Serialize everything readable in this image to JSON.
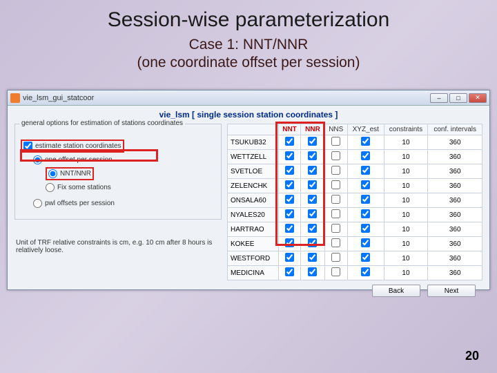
{
  "slide": {
    "title": "Session-wise parameterization",
    "subtitle_l1": "Case 1: NNT/NNR",
    "subtitle_l2": "(one coordinate offset per session)",
    "page": "20"
  },
  "window": {
    "title_text": "vie_lsm_gui_statcoor",
    "inner_title": "vie_lsm [ single session station coordinates ]",
    "group_legend": "general options for estimation of stations coordinates",
    "estimate_label": "estimate station coordinates",
    "one_offset_label": "one offset per session",
    "nntnnr_label": "NNT/NNR",
    "fix_label": "Fix some stations",
    "pwl_label": "pwl offsets per session",
    "note_text": "Unit of TRF relative constraints is cm, e.g. 10 cm after 8 hours is relatively loose.",
    "back_label": "Back",
    "next_label": "Next",
    "cols": {
      "name": "",
      "nnt": "NNT",
      "nnr": "NNR",
      "nns": "NNS",
      "xyz": "XYZ_est",
      "constr": "constraints",
      "conf": "conf. intervals"
    },
    "rows": [
      {
        "name": "TSUKUB32",
        "nnt": true,
        "nnr": true,
        "nns": false,
        "xyz": true,
        "constr": "10",
        "conf": "360"
      },
      {
        "name": "WETTZELL",
        "nnt": true,
        "nnr": true,
        "nns": false,
        "xyz": true,
        "constr": "10",
        "conf": "360"
      },
      {
        "name": "SVETLOE",
        "nnt": true,
        "nnr": true,
        "nns": false,
        "xyz": true,
        "constr": "10",
        "conf": "360"
      },
      {
        "name": "ZELENCHK",
        "nnt": true,
        "nnr": true,
        "nns": false,
        "xyz": true,
        "constr": "10",
        "conf": "360"
      },
      {
        "name": "ONSALA60",
        "nnt": true,
        "nnr": true,
        "nns": false,
        "xyz": true,
        "constr": "10",
        "conf": "360"
      },
      {
        "name": "NYALES20",
        "nnt": true,
        "nnr": true,
        "nns": false,
        "xyz": true,
        "constr": "10",
        "conf": "360"
      },
      {
        "name": "HARTRAO",
        "nnt": true,
        "nnr": true,
        "nns": false,
        "xyz": true,
        "constr": "10",
        "conf": "360"
      },
      {
        "name": "KOKEE",
        "nnt": true,
        "nnr": true,
        "nns": false,
        "xyz": true,
        "constr": "10",
        "conf": "360"
      },
      {
        "name": "WESTFORD",
        "nnt": true,
        "nnr": true,
        "nns": false,
        "xyz": true,
        "constr": "10",
        "conf": "360"
      },
      {
        "name": "MEDICINA",
        "nnt": true,
        "nnr": true,
        "nns": false,
        "xyz": true,
        "constr": "10",
        "conf": "360"
      }
    ]
  }
}
